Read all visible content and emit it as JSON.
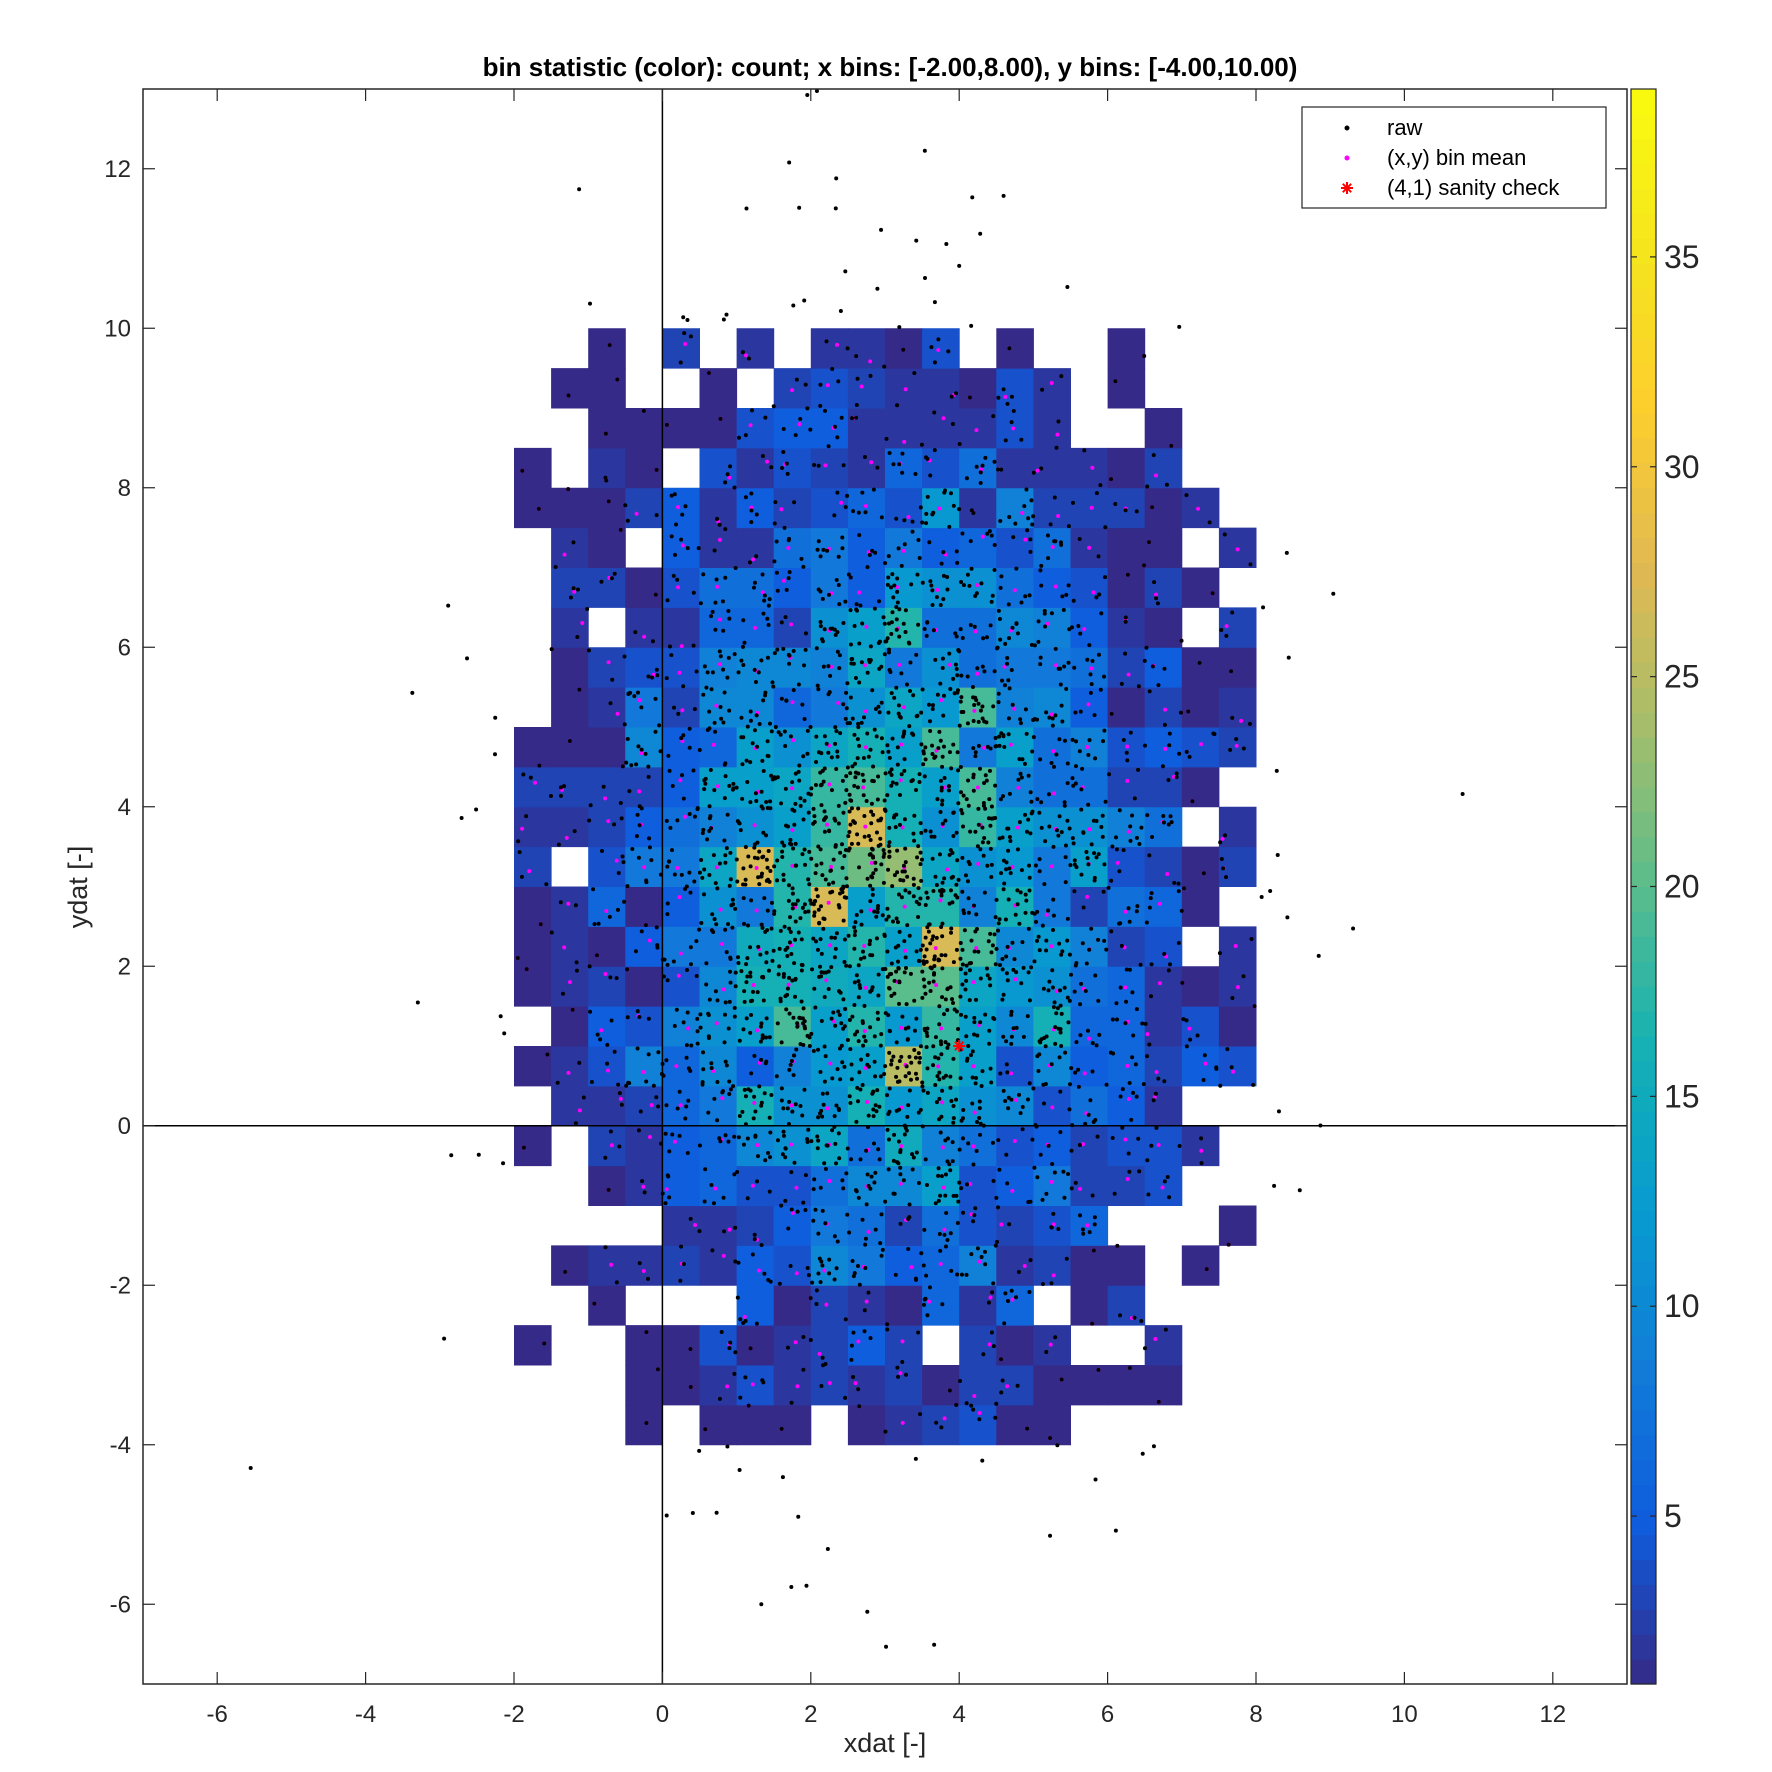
{
  "chart_data": {
    "type": "heatmap",
    "title": "bin statistic (color): count; x bins: [-2.00,8.00), y bins: [-4.00,10.00)",
    "xlabel": "xdat [-]",
    "ylabel": "ydat [-]",
    "xlim": [
      -7,
      13
    ],
    "ylim": [
      -7,
      13
    ],
    "x_ticks": [
      -6,
      -4,
      -2,
      0,
      2,
      4,
      6,
      8,
      10,
      12
    ],
    "y_ticks": [
      -6,
      -4,
      -2,
      0,
      2,
      4,
      6,
      8,
      10,
      12
    ],
    "grid": false,
    "bin_statistic": "count",
    "x_bins": [
      -2.0,
      8.0
    ],
    "y_bins": [
      -4.0,
      10.0
    ],
    "bin_size": 0.5,
    "colormap": "parula",
    "color_range": [
      1,
      39
    ],
    "colorbar_ticks": [
      5,
      10,
      15,
      20,
      25,
      30,
      35
    ],
    "legend": {
      "placement": "top-right",
      "entries": [
        {
          "label": "raw",
          "marker": "dot",
          "color": "#000000"
        },
        {
          "label": "(x,y) bin mean",
          "marker": "dot",
          "color": "#ff00ff"
        },
        {
          "label": "(4,1) sanity check",
          "marker": "asterisk",
          "color": "#ff0000"
        }
      ]
    },
    "reference_lines": {
      "x": 0,
      "y": 0
    },
    "sanity_check_point": [
      4,
      1
    ],
    "raw_distribution": {
      "mean": [
        3,
        3
      ],
      "std": [
        2,
        3
      ],
      "n": 3000
    }
  }
}
